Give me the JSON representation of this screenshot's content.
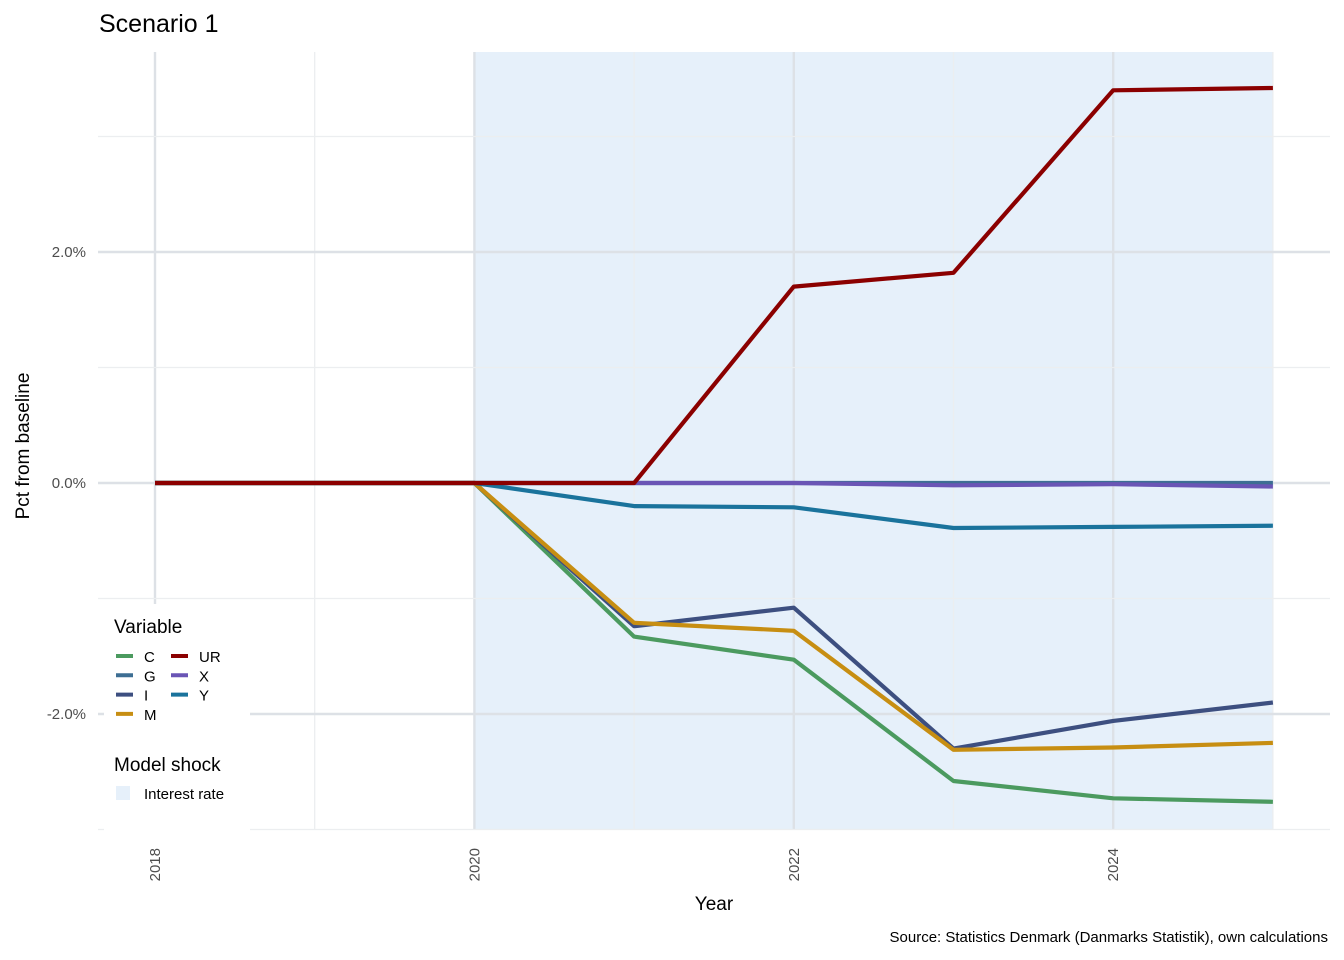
{
  "chart_data": {
    "type": "line",
    "title": "Scenario 1",
    "xlabel": "Year",
    "ylabel": "Pct from baseline",
    "caption": "Source: Statistics Denmark (Danmarks Statistik), own calculations",
    "x": [
      2018,
      2019,
      2020,
      2021,
      2022,
      2023,
      2024,
      2025
    ],
    "x_ticks": [
      "2018",
      "2020",
      "2022",
      "2024"
    ],
    "y_ticks": [
      "2.0%",
      "0.0%",
      "-2.0%"
    ],
    "xlim": [
      2018,
      2025
    ],
    "ylim": [
      -3.0,
      3.4
    ],
    "grid": true,
    "shaded_region": {
      "label": "Interest rate",
      "x_start": 2020,
      "x_end": 2025,
      "color": "#e6f0fa"
    },
    "series": [
      {
        "name": "C",
        "color": "#4b9a5f",
        "values": [
          0,
          0,
          0,
          -1.33,
          -1.53,
          -2.58,
          -2.73,
          -2.76
        ]
      },
      {
        "name": "G",
        "color": "#3d6e93",
        "values": [
          0,
          0,
          0,
          0,
          0,
          0,
          0,
          0
        ]
      },
      {
        "name": "I",
        "color": "#3d4f80",
        "values": [
          0,
          0,
          0,
          -1.24,
          -1.08,
          -2.3,
          -2.06,
          -1.9
        ]
      },
      {
        "name": "M",
        "color": "#c78e12",
        "values": [
          0,
          0,
          0,
          -1.21,
          -1.28,
          -2.31,
          -2.29,
          -2.25
        ]
      },
      {
        "name": "UR",
        "color": "#8b0000",
        "values": [
          0,
          0,
          0,
          0,
          1.7,
          1.82,
          3.4,
          3.42
        ]
      },
      {
        "name": "X",
        "color": "#6a55b5",
        "values": [
          0,
          0,
          0,
          0,
          0,
          -0.02,
          -0.01,
          -0.03
        ]
      },
      {
        "name": "Y",
        "color": "#1a739c",
        "values": [
          0,
          0,
          0,
          -0.2,
          -0.21,
          -0.39,
          -0.38,
          -0.37
        ]
      }
    ],
    "legend": {
      "position": "bottom-left",
      "variable_title": "Variable",
      "shock_title": "Model shock",
      "shock_label": "Interest rate"
    }
  }
}
